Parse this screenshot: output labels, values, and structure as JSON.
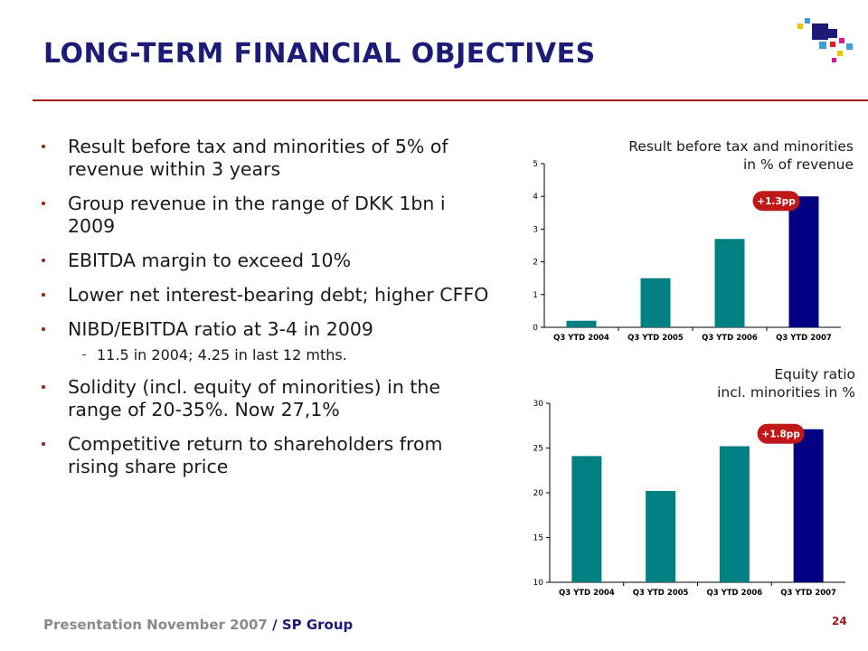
{
  "title": "LONG-TERM FINANCIAL OBJECTIVES",
  "bullets": [
    {
      "text": "Result before tax and minorities of 5% of revenue within 3 years"
    },
    {
      "text": "Group revenue in the range of DKK 1bn i 2009"
    },
    {
      "text": "EBITDA margin to exceed 10%"
    },
    {
      "text": "Lower net interest-bearing debt; higher CFFO"
    },
    {
      "text": "NIBD/EBITDA ratio at 3-4 in 2009",
      "sub": "11.5 in 2004; 4.25 in last 12 mths."
    },
    {
      "text": "Solidity (incl. equity of minorities) in the range of 20-35%. Now 27,1%"
    },
    {
      "text": "Competitive return to shareholders from rising share price"
    }
  ],
  "chart_data": [
    {
      "type": "bar",
      "title": "Result before tax and minorities",
      "subtitle": "in % of revenue",
      "categories": [
        "Q3 YTD 2004",
        "Q3 YTD 2005",
        "Q3 YTD 2006",
        "Q3 YTD 2007"
      ],
      "values": [
        0.2,
        1.5,
        2.7,
        4.0
      ],
      "ylim": [
        0,
        5
      ],
      "yticks": [
        0,
        1,
        2,
        3,
        4,
        5
      ],
      "annotation": "+1.3pp",
      "bar_colors": [
        "#008080",
        "#008080",
        "#008080",
        "#000080"
      ],
      "grid": false
    },
    {
      "type": "bar",
      "title": "Equity ratio",
      "subtitle": "incl. minorities in %",
      "categories": [
        "Q3 YTD 2004",
        "Q3 YTD 2005",
        "Q3 YTD 2006",
        "Q3 YTD 2007"
      ],
      "values": [
        24.1,
        20.2,
        25.2,
        27.1
      ],
      "ylim": [
        10,
        30
      ],
      "yticks": [
        10,
        15,
        20,
        25,
        30
      ],
      "annotation": "+1.8pp",
      "bar_colors": [
        "#008080",
        "#008080",
        "#008080",
        "#000080"
      ],
      "grid": false
    }
  ],
  "footer": {
    "text": "Presentation November 2007",
    "sep": " / ",
    "group": "SP Group"
  },
  "page_number": "24",
  "colors": {
    "title": "#1c1c78",
    "rule": "#a01818",
    "teal": "#008080",
    "navy": "#000080",
    "badge": "#c01818"
  },
  "logo": {
    "icon": "sp-group-logo-icon"
  }
}
